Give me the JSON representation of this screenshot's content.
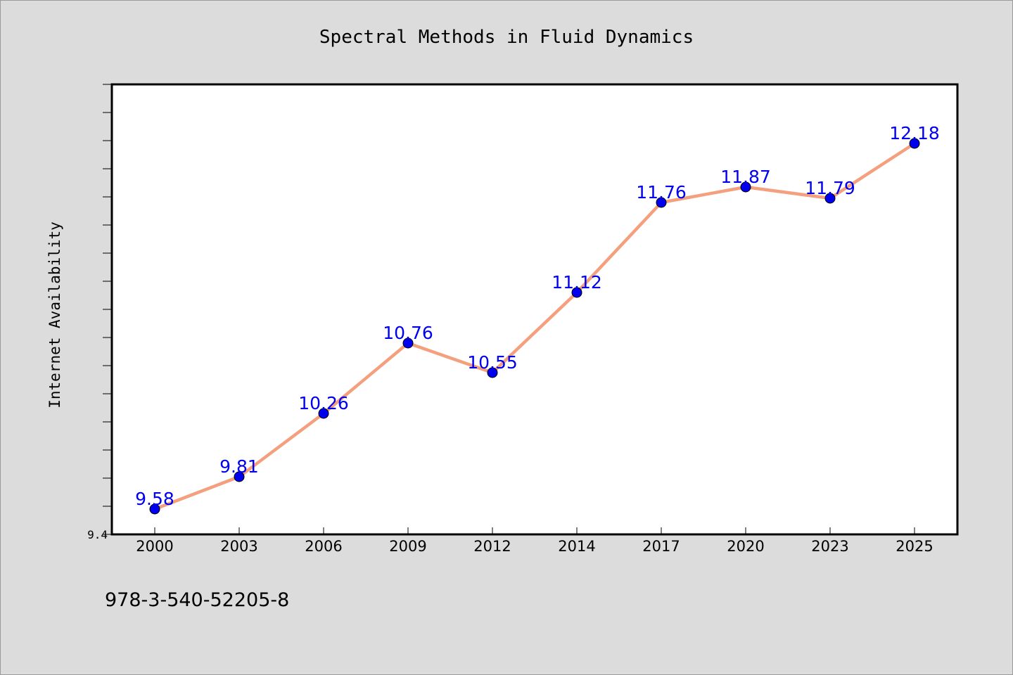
{
  "chart_data": {
    "type": "line",
    "title": "Spectral Methods in Fluid Dynamics",
    "xlabel": "",
    "ylabel": "Internet Availability",
    "categories": [
      "2000",
      "2003",
      "2006",
      "2009",
      "2012",
      "2014",
      "2017",
      "2020",
      "2023",
      "2025"
    ],
    "series": [
      {
        "values": [
          9.58,
          9.81,
          10.26,
          10.76,
          10.55,
          11.12,
          11.76,
          11.87,
          11.79,
          12.18
        ]
      }
    ],
    "data_labels": [
      "9.58",
      "9.81",
      "10.26",
      "10.76",
      "10.55",
      "11.12",
      "11.76",
      "11.87",
      "11.79",
      "12.18"
    ],
    "ylim": [
      9.4,
      12.6
    ],
    "yticks_labeled": [
      "9.4"
    ],
    "minor_tick_step": 0.2,
    "grid": false,
    "legend": "none",
    "colors": {
      "line": "#f4a07e",
      "marker": "#0000ee",
      "label": "#0000ee",
      "plot_background": "#ffffff",
      "figure_background": "#dcdcdc"
    }
  },
  "footer": {
    "isbn": "978-3-540-52205-8"
  }
}
